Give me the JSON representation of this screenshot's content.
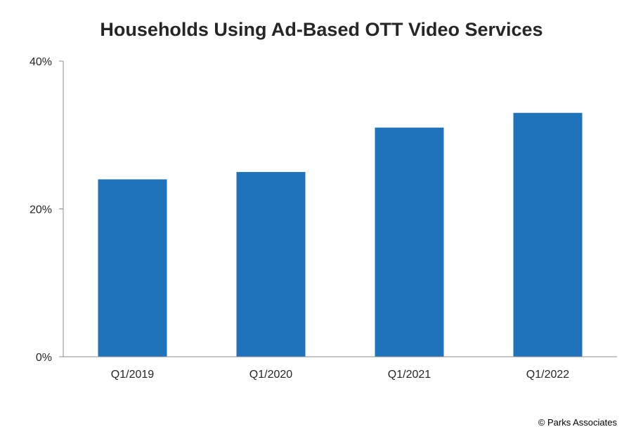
{
  "chart_data": {
    "type": "bar",
    "title": "Households Using Ad-Based OTT Video Services",
    "categories": [
      "Q1/2019",
      "Q1/2020",
      "Q1/2021",
      "Q1/2022"
    ],
    "values": [
      24,
      25,
      31,
      33
    ],
    "value_unit": "%",
    "ylim": [
      0,
      40
    ],
    "yticks": [
      0,
      20,
      40
    ],
    "ytick_labels": [
      "0%",
      "20%",
      "40%"
    ],
    "grid": false,
    "legend": "none",
    "bar_color": "#1f73bb",
    "axis_color": "#8c8c8c"
  },
  "footer": {
    "copyright": "© Parks Associates"
  }
}
